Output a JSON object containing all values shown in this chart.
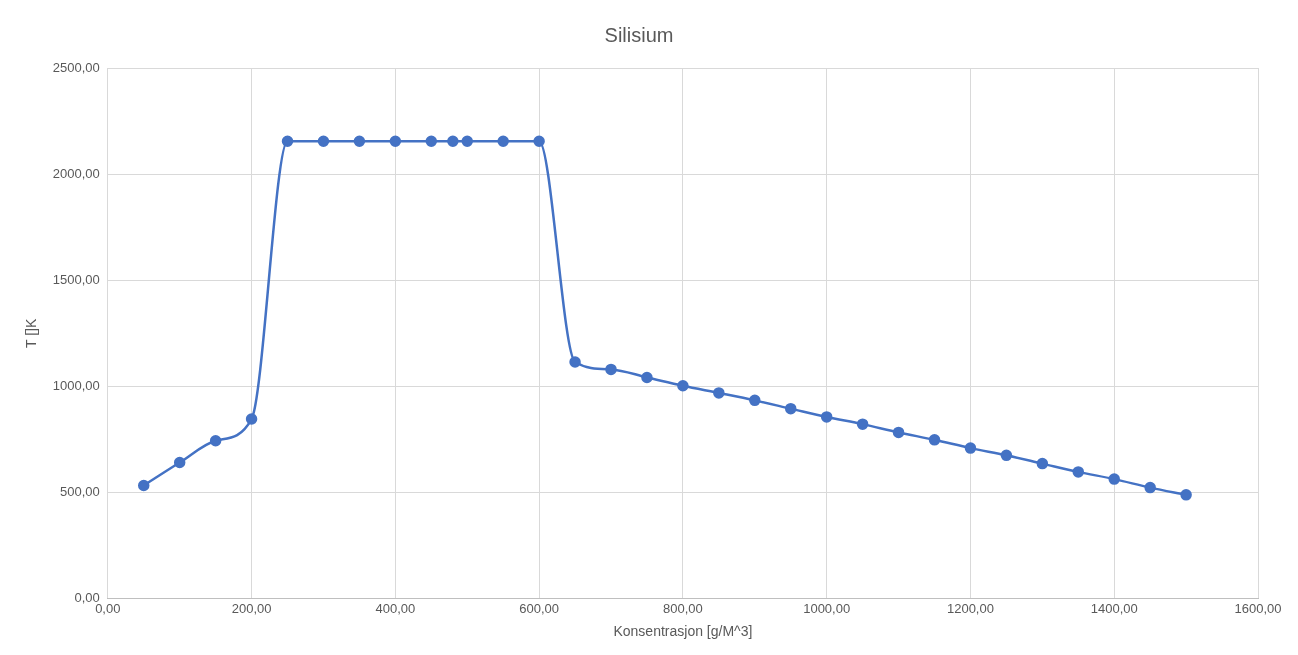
{
  "chart_data": {
    "type": "line",
    "title": "Silisium",
    "xlabel": "Konsentrasjon [g/M^3]",
    "ylabel": "T []K",
    "x": [
      50,
      100,
      150,
      200,
      250,
      300,
      350,
      400,
      450,
      480,
      500,
      550,
      600,
      650,
      700,
      750,
      800,
      850,
      900,
      950,
      1000,
      1050,
      1100,
      1150,
      1200,
      1250,
      1300,
      1350,
      1400,
      1450,
      1500
    ],
    "series": [
      {
        "color": "#4472c4",
        "values": [
          533,
          641,
          744,
          846,
          2155,
          2155,
          2155,
          2155,
          2155,
          2155,
          2155,
          2155,
          2155,
          1115,
          1080,
          1042,
          1003,
          969,
          934,
          895,
          856,
          822,
          783,
          748,
          709,
          675,
          636,
          597,
          563,
          523,
          489
        ]
      }
    ],
    "xlim": [
      0,
      1600
    ],
    "xticks": [
      {
        "value": 0,
        "label": "0,00"
      },
      {
        "value": 200,
        "label": "200,00"
      },
      {
        "value": 400,
        "label": "400,00"
      },
      {
        "value": 600,
        "label": "600,00"
      },
      {
        "value": 800,
        "label": "800,00"
      },
      {
        "value": 1000,
        "label": "1000,00"
      },
      {
        "value": 1200,
        "label": "1200,00"
      },
      {
        "value": 1400,
        "label": "1400,00"
      },
      {
        "value": 1600,
        "label": "1600,00"
      }
    ],
    "ylim": [
      0,
      2500
    ],
    "yticks": [
      {
        "value": 0,
        "label": "0,00"
      },
      {
        "value": 500,
        "label": "500,00"
      },
      {
        "value": 1000,
        "label": "1000,00"
      },
      {
        "value": 1500,
        "label": "1500,00"
      },
      {
        "value": 2000,
        "label": "2000,00"
      },
      {
        "value": 2500,
        "label": "2500,00"
      }
    ],
    "grid": true,
    "marker": "circle",
    "line_style": "solid",
    "legend": false
  }
}
